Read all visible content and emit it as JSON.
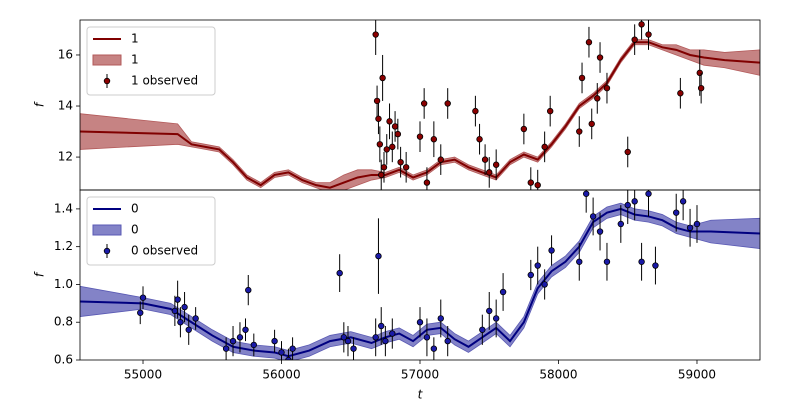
{
  "chart_data": [
    {
      "type": "line",
      "ylabel": "f",
      "legend": "upper left",
      "xlim": [
        54545,
        59455
      ],
      "ylim": [
        10.71,
        17.37
      ],
      "yticks": [
        12,
        14,
        16
      ],
      "series": [
        {
          "name": "1",
          "kind": "line",
          "color": "#800000",
          "x": [
            54545,
            55250,
            55350,
            55450,
            55550,
            55650,
            55750,
            55850,
            55950,
            56050,
            56150,
            56250,
            56350,
            56450,
            56550,
            56650,
            56750,
            56850,
            56950,
            57050,
            57150,
            57250,
            57350,
            57450,
            57550,
            57650,
            57750,
            57850,
            57950,
            58050,
            58150,
            58250,
            58350,
            58450,
            58550,
            58650,
            58750,
            58850,
            58950,
            59050,
            59200,
            59455
          ],
          "values": [
            13.0,
            12.9,
            12.5,
            12.4,
            12.3,
            11.8,
            11.2,
            10.9,
            11.3,
            11.4,
            11.1,
            10.9,
            10.8,
            11.0,
            11.2,
            11.3,
            11.3,
            11.5,
            11.2,
            11.4,
            11.8,
            11.9,
            11.6,
            11.4,
            11.2,
            11.8,
            12.1,
            11.9,
            12.5,
            13.2,
            14.0,
            14.4,
            14.9,
            15.8,
            16.5,
            16.5,
            16.3,
            16.2,
            16.0,
            15.9,
            15.8,
            15.7
          ]
        },
        {
          "name": "1",
          "kind": "band",
          "color": "#b35a5a",
          "x": [
            54545,
            55250,
            55350,
            55450,
            55550,
            55650,
            55750,
            55850,
            55950,
            56050,
            56150,
            56250,
            56350,
            56450,
            56550,
            56650,
            56750,
            56850,
            56950,
            57050,
            57150,
            57250,
            57350,
            57450,
            57550,
            57650,
            57750,
            57850,
            57950,
            58050,
            58150,
            58250,
            58350,
            58450,
            58550,
            58650,
            58750,
            58850,
            58950,
            59050,
            59200,
            59455
          ],
          "lower": [
            12.3,
            12.5,
            12.4,
            12.3,
            12.2,
            11.7,
            11.1,
            10.8,
            11.2,
            11.3,
            11.0,
            10.8,
            10.6,
            10.7,
            10.9,
            11.1,
            11.2,
            11.4,
            11.1,
            11.3,
            11.7,
            11.8,
            11.5,
            11.3,
            11.1,
            11.7,
            12.0,
            11.8,
            12.4,
            13.1,
            13.9,
            14.3,
            14.8,
            15.7,
            16.4,
            16.4,
            16.2,
            16.0,
            15.8,
            15.6,
            15.5,
            15.2
          ],
          "upper": [
            13.7,
            13.3,
            12.6,
            12.5,
            12.4,
            11.9,
            11.3,
            11.0,
            11.4,
            11.5,
            11.2,
            11.0,
            11.0,
            11.3,
            11.5,
            11.5,
            11.4,
            11.6,
            11.3,
            11.5,
            11.9,
            12.0,
            11.7,
            11.5,
            11.3,
            11.9,
            12.2,
            12.0,
            12.6,
            13.3,
            14.1,
            14.5,
            15.0,
            15.9,
            16.6,
            16.6,
            16.4,
            16.4,
            16.2,
            16.2,
            16.1,
            16.2
          ]
        },
        {
          "name": "1 observed",
          "kind": "errorbar",
          "color": "#8b0000",
          "x": [
            56680,
            56690,
            56700,
            56710,
            56720,
            56730,
            56740,
            56760,
            56780,
            56800,
            56820,
            56840,
            56860,
            56900,
            57000,
            57030,
            57050,
            57100,
            57150,
            57200,
            57400,
            57430,
            57470,
            57500,
            57550,
            57750,
            57800,
            57850,
            57900,
            57940,
            58150,
            58170,
            58220,
            58240,
            58280,
            58300,
            58350,
            58500,
            58550,
            58600,
            58650,
            58880,
            59020,
            59030
          ],
          "values": [
            16.8,
            14.2,
            13.5,
            12.5,
            11.3,
            15.1,
            11.6,
            12.3,
            13.4,
            12.4,
            13.2,
            12.9,
            11.8,
            11.6,
            12.8,
            14.1,
            11.0,
            12.7,
            11.9,
            14.1,
            13.8,
            12.7,
            11.9,
            11.4,
            11.7,
            13.1,
            11.0,
            10.9,
            12.4,
            13.8,
            13.0,
            15.1,
            16.5,
            13.3,
            14.3,
            15.9,
            14.7,
            12.2,
            16.6,
            17.2,
            16.8,
            14.5,
            15.3,
            14.7
          ],
          "errors": [
            0.8,
            0.6,
            0.6,
            0.7,
            0.6,
            0.9,
            0.6,
            0.6,
            0.7,
            0.6,
            0.6,
            0.6,
            0.6,
            0.6,
            0.6,
            0.6,
            0.6,
            0.7,
            0.6,
            0.6,
            0.6,
            0.6,
            0.6,
            0.6,
            0.6,
            0.6,
            0.6,
            0.6,
            0.6,
            0.6,
            0.6,
            0.6,
            0.6,
            0.6,
            0.6,
            0.6,
            0.6,
            0.6,
            0.6,
            0.6,
            0.6,
            0.6,
            0.9,
            0.6
          ]
        }
      ]
    },
    {
      "type": "line",
      "ylabel": "f",
      "xlabel": "t",
      "legend": "upper left",
      "xlim": [
        54545,
        59455
      ],
      "xticks": [
        55000,
        56000,
        57000,
        58000,
        59000
      ],
      "ylim": [
        0.6,
        1.5
      ],
      "yticks": [
        0.6,
        0.8,
        {
          "value": 1,
          "label": "1.0"
        },
        1.2,
        1.4
      ],
      "series": [
        {
          "name": "0",
          "kind": "line",
          "color": "#000080",
          "x": [
            54545,
            55000,
            55200,
            55350,
            55500,
            55650,
            55800,
            55950,
            56050,
            56200,
            56350,
            56500,
            56650,
            56750,
            56850,
            56950,
            57050,
            57150,
            57250,
            57350,
            57450,
            57550,
            57650,
            57750,
            57850,
            57950,
            58050,
            58150,
            58250,
            58350,
            58450,
            58550,
            58650,
            58750,
            58850,
            58950,
            59100,
            59455
          ],
          "values": [
            0.91,
            0.9,
            0.87,
            0.8,
            0.73,
            0.67,
            0.65,
            0.64,
            0.62,
            0.65,
            0.7,
            0.72,
            0.69,
            0.72,
            0.74,
            0.7,
            0.76,
            0.77,
            0.71,
            0.67,
            0.72,
            0.77,
            0.7,
            0.8,
            0.98,
            1.07,
            1.12,
            1.2,
            1.33,
            1.38,
            1.4,
            1.37,
            1.36,
            1.34,
            1.3,
            1.28,
            1.28,
            1.27
          ]
        },
        {
          "name": "0",
          "kind": "band",
          "color": "#5a5ab4",
          "x": [
            54545,
            55000,
            55200,
            55350,
            55500,
            55650,
            55800,
            55950,
            56050,
            56200,
            56350,
            56500,
            56650,
            56750,
            56850,
            56950,
            57050,
            57150,
            57250,
            57350,
            57450,
            57550,
            57650,
            57750,
            57850,
            57950,
            58050,
            58150,
            58250,
            58350,
            58450,
            58550,
            58650,
            58750,
            58850,
            58950,
            59100,
            59455
          ],
          "lower": [
            0.83,
            0.87,
            0.84,
            0.77,
            0.7,
            0.64,
            0.62,
            0.61,
            0.59,
            0.62,
            0.67,
            0.69,
            0.66,
            0.69,
            0.71,
            0.67,
            0.73,
            0.74,
            0.68,
            0.64,
            0.69,
            0.74,
            0.67,
            0.77,
            0.95,
            1.04,
            1.09,
            1.17,
            1.3,
            1.35,
            1.37,
            1.34,
            1.33,
            1.31,
            1.27,
            1.25,
            1.22,
            1.19
          ],
          "upper": [
            0.99,
            0.93,
            0.9,
            0.83,
            0.76,
            0.7,
            0.68,
            0.67,
            0.65,
            0.68,
            0.73,
            0.75,
            0.72,
            0.75,
            0.77,
            0.73,
            0.79,
            0.8,
            0.74,
            0.7,
            0.75,
            0.8,
            0.73,
            0.83,
            1.01,
            1.1,
            1.15,
            1.23,
            1.36,
            1.41,
            1.43,
            1.4,
            1.39,
            1.37,
            1.33,
            1.31,
            1.34,
            1.35
          ]
        },
        {
          "name": "0 observed",
          "kind": "errorbar",
          "color": "#1a1aa8",
          "x": [
            54980,
            55000,
            55230,
            55250,
            55270,
            55300,
            55330,
            55380,
            55600,
            55650,
            55700,
            55740,
            55760,
            55800,
            55950,
            56000,
            56050,
            56080,
            56420,
            56450,
            56480,
            56520,
            56680,
            56700,
            56720,
            56750,
            56800,
            57000,
            57050,
            57100,
            57150,
            57200,
            57450,
            57500,
            57550,
            57600,
            57800,
            57850,
            57900,
            57950,
            58150,
            58200,
            58250,
            58300,
            58350,
            58450,
            58500,
            58550,
            58600,
            58650,
            58700,
            58850,
            58900,
            58950,
            59000
          ],
          "values": [
            0.85,
            0.93,
            0.86,
            0.92,
            0.8,
            0.88,
            0.76,
            0.82,
            0.66,
            0.7,
            0.72,
            0.76,
            0.97,
            0.68,
            0.7,
            0.64,
            0.6,
            0.66,
            1.06,
            0.72,
            0.7,
            0.66,
            0.72,
            1.15,
            0.78,
            0.7,
            0.74,
            0.8,
            0.72,
            0.66,
            0.82,
            0.7,
            0.76,
            0.86,
            0.82,
            0.96,
            1.05,
            1.1,
            1.0,
            1.18,
            1.12,
            1.48,
            1.36,
            1.28,
            1.12,
            1.32,
            1.42,
            1.44,
            1.12,
            1.48,
            1.1,
            1.38,
            1.44,
            1.3,
            1.32
          ],
          "errors": [
            0.06,
            0.06,
            0.08,
            0.1,
            0.08,
            0.08,
            0.08,
            0.06,
            0.06,
            0.08,
            0.08,
            0.06,
            0.08,
            0.06,
            0.06,
            0.06,
            0.06,
            0.06,
            0.1,
            0.08,
            0.08,
            0.06,
            0.1,
            0.2,
            0.1,
            0.08,
            0.08,
            0.08,
            0.1,
            0.06,
            0.1,
            0.08,
            0.08,
            0.1,
            0.1,
            0.1,
            0.08,
            0.1,
            0.08,
            0.08,
            0.1,
            0.1,
            0.1,
            0.1,
            0.1,
            0.1,
            0.1,
            0.1,
            0.1,
            0.12,
            0.1,
            0.1,
            0.1,
            0.1,
            0.1
          ]
        }
      ]
    }
  ]
}
